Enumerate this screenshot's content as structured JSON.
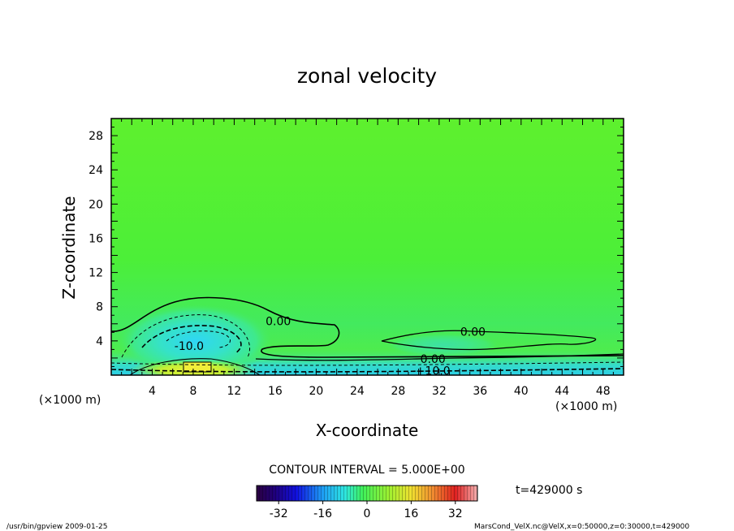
{
  "chart_data": {
    "type": "heatmap",
    "title": "zonal velocity",
    "xlabel": "X-coordinate",
    "ylabel": "Z-coordinate",
    "x_unit": "(×1000 m)",
    "y_unit": "(×1000 m)",
    "xlim": [
      0,
      50
    ],
    "ylim": [
      0,
      30
    ],
    "x_ticks": [
      4,
      8,
      12,
      16,
      20,
      24,
      28,
      32,
      36,
      40,
      44,
      48
    ],
    "y_ticks": [
      4,
      8,
      12,
      16,
      20,
      24,
      28
    ],
    "contour_labels": [
      {
        "text": "0.00",
        "x": 16.3,
        "y": 6.3
      },
      {
        "text": "-10.0",
        "x": 7.6,
        "y": 3.4
      },
      {
        "text": "0.00",
        "x": 35.3,
        "y": 5.1
      },
      {
        "text": "0.00",
        "x": 31.4,
        "y": 1.9
      },
      {
        "text": "+10.0",
        "x": 31.4,
        "y": 0.5
      }
    ],
    "colorbar": {
      "ticks": [
        "-32",
        "-16",
        "0",
        "16",
        "32"
      ],
      "range": [
        -40,
        40
      ]
    },
    "contour_interval": "CONTOUR INTERVAL = 5.000E+00",
    "time": "t=429000 s"
  },
  "footer": {
    "left": "/usr/bin/gpview   2009-01-25",
    "right": "MarsCond_VelX.nc@VelX,x=0:50000,z=0:30000,t=429000"
  }
}
